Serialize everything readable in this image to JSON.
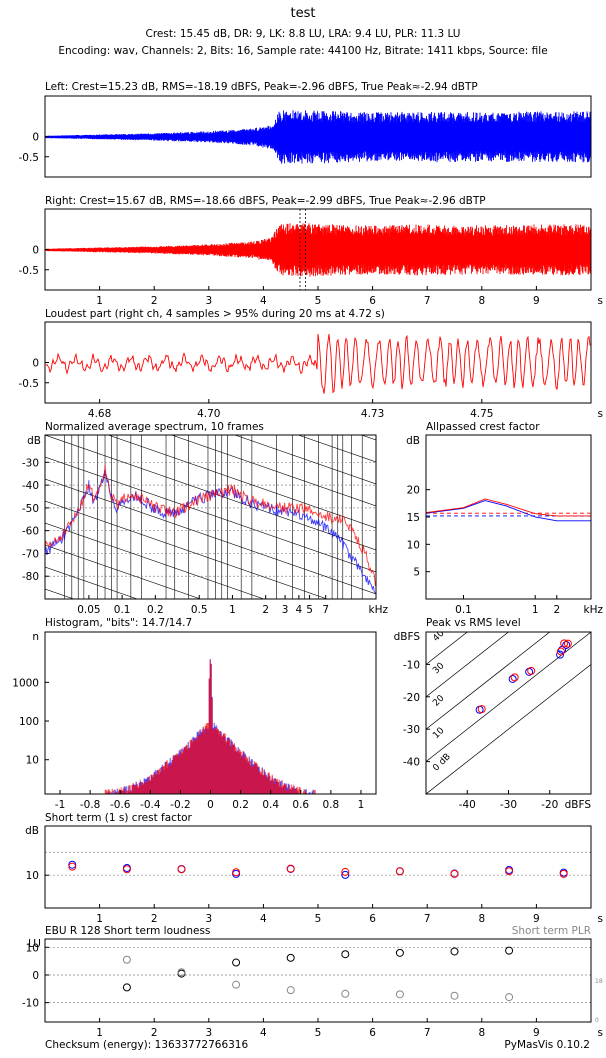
{
  "header": {
    "title": "test",
    "line1": "Crest: 15.45 dB,  DR: 9,  LK: 8.8 LU,  LRA: 9.4 LU,  PLR: 11.3 LU",
    "line2": "Encoding: wav,  Channels: 2,  Bits: 16,  Sample rate: 44100 Hz,  Bitrate: 1411 kbps,  Source: file"
  },
  "footer": {
    "checksum": "Checksum (energy): 13633772766316",
    "version": "PyMasVis 0.10.2"
  },
  "colors": {
    "left": "#0000ff",
    "right": "#ff0000",
    "grid": "#888888",
    "gray": "#888888"
  },
  "chart_data": [
    {
      "id": "left-waveform",
      "type": "line",
      "title": "Left: Crest=15.23 dB, RMS=-18.19 dBFS, Peak=-2.96 dBFS, True Peak≈-2.94 dBTP",
      "ylim": [
        -1,
        1
      ],
      "xlim": [
        0,
        10
      ],
      "yticks": [
        {
          "v": 0,
          "label": "0"
        },
        {
          "v": -0.5,
          "label": "-0.5"
        }
      ],
      "xticks": [],
      "xunit": "",
      "envelope": [
        [
          0,
          0.02
        ],
        [
          1,
          0.05
        ],
        [
          2,
          0.08
        ],
        [
          3,
          0.13
        ],
        [
          3.8,
          0.2
        ],
        [
          4.15,
          0.3
        ],
        [
          4.3,
          0.65
        ],
        [
          5,
          0.65
        ],
        [
          6,
          0.6
        ],
        [
          7,
          0.62
        ],
        [
          8,
          0.6
        ],
        [
          9,
          0.62
        ],
        [
          10,
          0.62
        ]
      ]
    },
    {
      "id": "right-waveform",
      "type": "line",
      "title": "Right: Crest=15.67 dB, RMS=-18.66 dBFS, Peak=-2.99 dBFS, True Peak≈-2.96 dBTP",
      "ylim": [
        -1,
        1
      ],
      "xlim": [
        0,
        10
      ],
      "yticks": [
        {
          "v": 0,
          "label": "0"
        },
        {
          "v": -0.5,
          "label": "-0.5"
        }
      ],
      "xticks": [
        {
          "v": 1,
          "label": "1"
        },
        {
          "v": 2,
          "label": "2"
        },
        {
          "v": 3,
          "label": "3"
        },
        {
          "v": 4,
          "label": "4"
        },
        {
          "v": 5,
          "label": "5"
        },
        {
          "v": 6,
          "label": "6"
        },
        {
          "v": 7,
          "label": "7"
        },
        {
          "v": 8,
          "label": "8"
        },
        {
          "v": 9,
          "label": "9"
        }
      ],
      "xunit": "s",
      "markers": [
        4.67,
        4.77
      ],
      "envelope": [
        [
          0,
          0.02
        ],
        [
          1,
          0.05
        ],
        [
          2,
          0.08
        ],
        [
          3,
          0.13
        ],
        [
          3.8,
          0.2
        ],
        [
          4.15,
          0.3
        ],
        [
          4.3,
          0.65
        ],
        [
          5,
          0.65
        ],
        [
          6,
          0.6
        ],
        [
          7,
          0.62
        ],
        [
          8,
          0.6
        ],
        [
          9,
          0.62
        ],
        [
          10,
          0.62
        ]
      ]
    },
    {
      "id": "loudest-part",
      "type": "line",
      "title": "Loudest part (right ch, 4 samples > 95% during 20 ms at 4.72 s)",
      "ylim": [
        -1,
        1
      ],
      "xlim": [
        4.67,
        4.77
      ],
      "yticks": [
        {
          "v": 0,
          "label": "0"
        },
        {
          "v": -0.5,
          "label": "-0.5"
        }
      ],
      "xticks": [
        {
          "v": 4.68,
          "label": "4.68"
        },
        {
          "v": 4.7,
          "label": "4.70"
        },
        {
          "v": 4.73,
          "label": "4.73"
        },
        {
          "v": 4.75,
          "label": "4.75"
        }
      ],
      "xunit": "s",
      "transient_at": 4.72
    },
    {
      "id": "spectrum",
      "type": "line",
      "title": "Normalized average spectrum, 10 frames",
      "ylabel": "dB",
      "xunit": "kHz",
      "xlim": [
        0.02,
        20
      ],
      "ylim": [
        -90,
        -18
      ],
      "yticks": [
        {
          "v": -30,
          "label": "-30"
        },
        {
          "v": -40,
          "label": "-40"
        },
        {
          "v": -50,
          "label": "-50"
        },
        {
          "v": -60,
          "label": "-60"
        },
        {
          "v": -70,
          "label": "-70"
        },
        {
          "v": -80,
          "label": "-80"
        }
      ],
      "xticks": [
        {
          "v": 0.05,
          "label": "0.05"
        },
        {
          "v": 0.1,
          "label": "0.1"
        },
        {
          "v": 0.2,
          "label": "0.2"
        },
        {
          "v": 0.5,
          "label": "0.5"
        },
        {
          "v": 1,
          "label": "1"
        },
        {
          "v": 2,
          "label": "2"
        },
        {
          "v": 3,
          "label": "3"
        },
        {
          "v": 4,
          "label": "4"
        },
        {
          "v": 5,
          "label": "5"
        },
        {
          "v": 7,
          "label": "7"
        }
      ],
      "series": [
        {
          "name": "left",
          "points": [
            [
              0.02,
              -69
            ],
            [
              0.025,
              -66
            ],
            [
              0.03,
              -62
            ],
            [
              0.035,
              -58
            ],
            [
              0.04,
              -52
            ],
            [
              0.045,
              -46
            ],
            [
              0.05,
              -40
            ],
            [
              0.055,
              -47
            ],
            [
              0.06,
              -44
            ],
            [
              0.07,
              -34
            ],
            [
              0.08,
              -46
            ],
            [
              0.09,
              -50
            ],
            [
              0.1,
              -48
            ],
            [
              0.12,
              -44
            ],
            [
              0.15,
              -46
            ],
            [
              0.2,
              -51
            ],
            [
              0.3,
              -53
            ],
            [
              0.4,
              -49
            ],
            [
              0.5,
              -46
            ],
            [
              0.7,
              -44
            ],
            [
              1,
              -43
            ],
            [
              1.5,
              -48
            ],
            [
              2,
              -50
            ],
            [
              3,
              -52
            ],
            [
              4,
              -53
            ],
            [
              5,
              -55
            ],
            [
              7,
              -59
            ],
            [
              10,
              -66
            ],
            [
              13,
              -74
            ],
            [
              16,
              -80
            ],
            [
              20,
              -88
            ]
          ]
        },
        {
          "name": "right",
          "points": [
            [
              0.02,
              -67
            ],
            [
              0.025,
              -65
            ],
            [
              0.03,
              -61
            ],
            [
              0.035,
              -57
            ],
            [
              0.04,
              -51
            ],
            [
              0.045,
              -45
            ],
            [
              0.05,
              -39
            ],
            [
              0.055,
              -46
            ],
            [
              0.06,
              -43
            ],
            [
              0.07,
              -33
            ],
            [
              0.08,
              -45
            ],
            [
              0.09,
              -49
            ],
            [
              0.1,
              -47
            ],
            [
              0.12,
              -43
            ],
            [
              0.15,
              -46
            ],
            [
              0.2,
              -50
            ],
            [
              0.3,
              -52
            ],
            [
              0.4,
              -49
            ],
            [
              0.5,
              -46
            ],
            [
              0.7,
              -44
            ],
            [
              1,
              -42
            ],
            [
              1.5,
              -47
            ],
            [
              2,
              -48
            ],
            [
              3,
              -50
            ],
            [
              4,
              -50
            ],
            [
              5,
              -51
            ],
            [
              7,
              -54
            ],
            [
              10,
              -55
            ],
            [
              13,
              -62
            ],
            [
              16,
              -70
            ],
            [
              20,
              -84
            ]
          ]
        }
      ]
    },
    {
      "id": "allpassed-crest",
      "type": "line",
      "title": "Allpassed crest factor",
      "ylabel": "dB",
      "xunit": "kHz",
      "xlim": [
        0.03,
        6
      ],
      "ylim": [
        0,
        30
      ],
      "yticks": [
        {
          "v": 5,
          "label": "5"
        },
        {
          "v": 10,
          "label": "10"
        },
        {
          "v": 15,
          "label": "15"
        },
        {
          "v": 20,
          "label": "20"
        }
      ],
      "xticks": [
        {
          "v": 0.1,
          "label": "0.1"
        },
        {
          "v": 1,
          "label": "1"
        },
        {
          "v": 2,
          "label": "2"
        }
      ],
      "baseline_left": 15.2,
      "baseline_right": 15.7,
      "series": [
        {
          "name": "left",
          "points": [
            [
              0.03,
              15.7
            ],
            [
              0.1,
              16.6
            ],
            [
              0.2,
              18.0
            ],
            [
              0.4,
              17.0
            ],
            [
              1,
              15.0
            ],
            [
              2,
              14.3
            ],
            [
              6,
              14.3
            ]
          ]
        },
        {
          "name": "right",
          "points": [
            [
              0.03,
              15.8
            ],
            [
              0.1,
              16.7
            ],
            [
              0.2,
              18.3
            ],
            [
              0.4,
              17.3
            ],
            [
              1,
              15.6
            ],
            [
              2,
              15.2
            ],
            [
              6,
              15.2
            ]
          ]
        }
      ]
    },
    {
      "id": "histogram",
      "type": "bar",
      "title": "Histogram, \"bits\": 14.7/14.7",
      "ylabel": "n",
      "xlim": [
        -1.1,
        1.1
      ],
      "ylim_log": [
        1.3,
        20000
      ],
      "yticks": [
        {
          "v": 10,
          "label": "10"
        },
        {
          "v": 100,
          "label": "100"
        },
        {
          "v": 1000,
          "label": "1000"
        }
      ],
      "xticks": [
        {
          "v": -1,
          "label": "-1"
        },
        {
          "v": -0.8,
          "label": "-0.8"
        },
        {
          "v": -0.6,
          "label": "-0.6"
        },
        {
          "v": -0.4,
          "label": "-0.4"
        },
        {
          "v": -0.2,
          "label": "-0.2"
        },
        {
          "v": 0,
          "label": "0"
        },
        {
          "v": 0.2,
          "label": "0.2"
        },
        {
          "v": 0.4,
          "label": "0.4"
        },
        {
          "v": 0.6,
          "label": "0.6"
        },
        {
          "v": 0.8,
          "label": "0.8"
        },
        {
          "v": 1,
          "label": "1"
        }
      ],
      "peak": 4000,
      "center": 90,
      "extent": 0.7
    },
    {
      "id": "peak-vs-rms",
      "type": "scatter",
      "title": "Peak vs RMS level",
      "ylabel": "dBFS",
      "xlabel": "dBFS",
      "xlim": [
        -50,
        -10
      ],
      "ylim": [
        -50,
        0
      ],
      "xticks": [
        {
          "v": -40,
          "label": "-40"
        },
        {
          "v": -30,
          "label": "-30"
        },
        {
          "v": -20,
          "label": "-20"
        }
      ],
      "yticks": [
        {
          "v": -10,
          "label": "-10"
        },
        {
          "v": -20,
          "label": "-20"
        },
        {
          "v": -30,
          "label": "-30"
        },
        {
          "v": -40,
          "label": "-40"
        }
      ],
      "diag_labels": [
        "0 dB",
        "10",
        "20",
        "30",
        "40"
      ],
      "series": [
        {
          "name": "left",
          "points": [
            [
              -37,
              -24
            ],
            [
              -29,
              -14.5
            ],
            [
              -25,
              -12.3
            ],
            [
              -17.5,
              -7
            ],
            [
              -17,
              -5.5
            ],
            [
              -16,
              -4
            ]
          ]
        },
        {
          "name": "right",
          "points": [
            [
              -36.5,
              -23.8
            ],
            [
              -28.5,
              -14
            ],
            [
              -24.5,
              -12
            ],
            [
              -17.3,
              -6
            ],
            [
              -16.5,
              -3.5
            ],
            [
              -15.6,
              -3.6
            ]
          ]
        }
      ]
    },
    {
      "id": "short-term-crest",
      "type": "scatter",
      "title": "Short term (1 s) crest factor",
      "ylabel": "dB",
      "xunit": "s",
      "xlim": [
        0,
        10
      ],
      "ylim": [
        0,
        25
      ],
      "yticks": [
        {
          "v": 10,
          "label": "10"
        }
      ],
      "gridlines": [
        10,
        17
      ],
      "xticks": [
        {
          "v": 1,
          "label": "1"
        },
        {
          "v": 2,
          "label": "2"
        },
        {
          "v": 3,
          "label": "3"
        },
        {
          "v": 4,
          "label": "4"
        },
        {
          "v": 5,
          "label": "5"
        },
        {
          "v": 6,
          "label": "6"
        },
        {
          "v": 7,
          "label": "7"
        },
        {
          "v": 8,
          "label": "8"
        },
        {
          "v": 9,
          "label": "9"
        }
      ],
      "series": [
        {
          "name": "left",
          "points": [
            [
              0.5,
              13.2
            ],
            [
              1.5,
              12.2
            ],
            [
              2.5,
              11.9
            ],
            [
              3.5,
              10.4
            ],
            [
              4.5,
              11.9
            ],
            [
              5.5,
              10.1
            ],
            [
              6.5,
              11.2
            ],
            [
              7.5,
              10.5
            ],
            [
              8.5,
              11.6
            ],
            [
              9.5,
              10.8
            ]
          ]
        },
        {
          "name": "right",
          "points": [
            [
              0.5,
              12.6
            ],
            [
              1.5,
              11.8
            ],
            [
              2.5,
              11.8
            ],
            [
              3.5,
              10.9
            ],
            [
              4.5,
              12.0
            ],
            [
              5.5,
              11.0
            ],
            [
              6.5,
              11.2
            ],
            [
              7.5,
              10.4
            ],
            [
              8.5,
              11.2
            ],
            [
              9.5,
              10.4
            ]
          ]
        }
      ]
    },
    {
      "id": "ebu-r128",
      "type": "scatter",
      "title": "EBU R 128 Short term loudness",
      "right_title": "Short term PLR",
      "ylabel": "LU",
      "xunit": "s",
      "xlim": [
        0,
        10
      ],
      "ylim": [
        -17,
        13
      ],
      "yticks": [
        {
          "v": 10,
          "label": "10"
        },
        {
          "v": 0,
          "label": "0"
        },
        {
          "v": -10,
          "label": "-10"
        }
      ],
      "gridlines": [
        -10,
        0,
        10
      ],
      "right_ticks": [
        {
          "label": "18"
        },
        {
          "label": "0"
        }
      ],
      "xticks": [
        {
          "v": 1,
          "label": "1"
        },
        {
          "v": 2,
          "label": "2"
        },
        {
          "v": 3,
          "label": "3"
        },
        {
          "v": 4,
          "label": "4"
        },
        {
          "v": 5,
          "label": "5"
        },
        {
          "v": 6,
          "label": "6"
        },
        {
          "v": 7,
          "label": "7"
        },
        {
          "v": 8,
          "label": "8"
        },
        {
          "v": 9,
          "label": "9"
        }
      ],
      "series": [
        {
          "name": "loudness",
          "points": [
            [
              1.5,
              -4.5
            ],
            [
              2.5,
              0.5
            ],
            [
              3.5,
              4.5
            ],
            [
              4.5,
              6.2
            ],
            [
              5.5,
              7.5
            ],
            [
              6.5,
              8.0
            ],
            [
              7.5,
              8.5
            ],
            [
              8.5,
              8.8
            ]
          ]
        },
        {
          "name": "plr",
          "points": [
            [
              1.5,
              5.5
            ],
            [
              2.5,
              1.0
            ],
            [
              3.5,
              -3.5
            ],
            [
              4.5,
              -5.5
            ],
            [
              5.5,
              -6.8
            ],
            [
              6.5,
              -7.0
            ],
            [
              7.5,
              -7.5
            ],
            [
              8.5,
              -8.0
            ]
          ]
        }
      ]
    }
  ]
}
